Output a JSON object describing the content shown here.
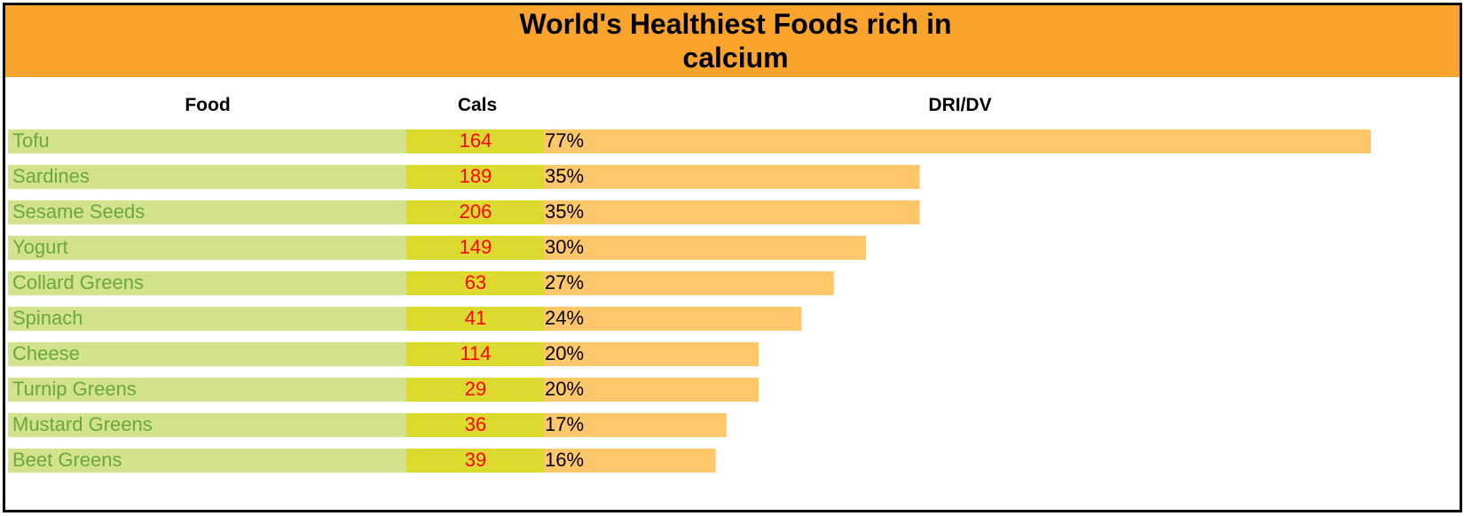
{
  "title_lines": [
    "World's Healthiest Foods rich in",
    "calcium"
  ],
  "headers": {
    "food": "Food",
    "cals": "Cals",
    "dri": "DRI/DV"
  },
  "colors": {
    "title_band": "#FBA42D",
    "food_bg": "#D3E28C",
    "food_text": "#6AA93A",
    "cals_bg": "#DDDA2F",
    "cals_text": "#FF0000",
    "dri_bar": "#FEC86A",
    "border": "#000000"
  },
  "chart_data": {
    "type": "bar",
    "title": "World's Healthiest Foods rich in calcium",
    "columns": [
      "Food",
      "Cals",
      "DRI/DV"
    ],
    "categories": [
      "Tofu",
      "Sardines",
      "Sesame Seeds",
      "Yogurt",
      "Collard Greens",
      "Spinach",
      "Cheese",
      "Turnip Greens",
      "Mustard Greens",
      "Beet Greens"
    ],
    "cals": [
      164,
      189,
      206,
      149,
      63,
      41,
      114,
      29,
      36,
      39
    ],
    "values": [
      77,
      35,
      35,
      30,
      27,
      24,
      20,
      20,
      17,
      16
    ],
    "value_labels": [
      "77%",
      "35%",
      "35%",
      "30%",
      "27%",
      "24%",
      "20%",
      "20%",
      "17%",
      "16%"
    ],
    "xlim": [
      0,
      77
    ],
    "orientation": "horizontal",
    "grid": false,
    "legend": "none"
  }
}
